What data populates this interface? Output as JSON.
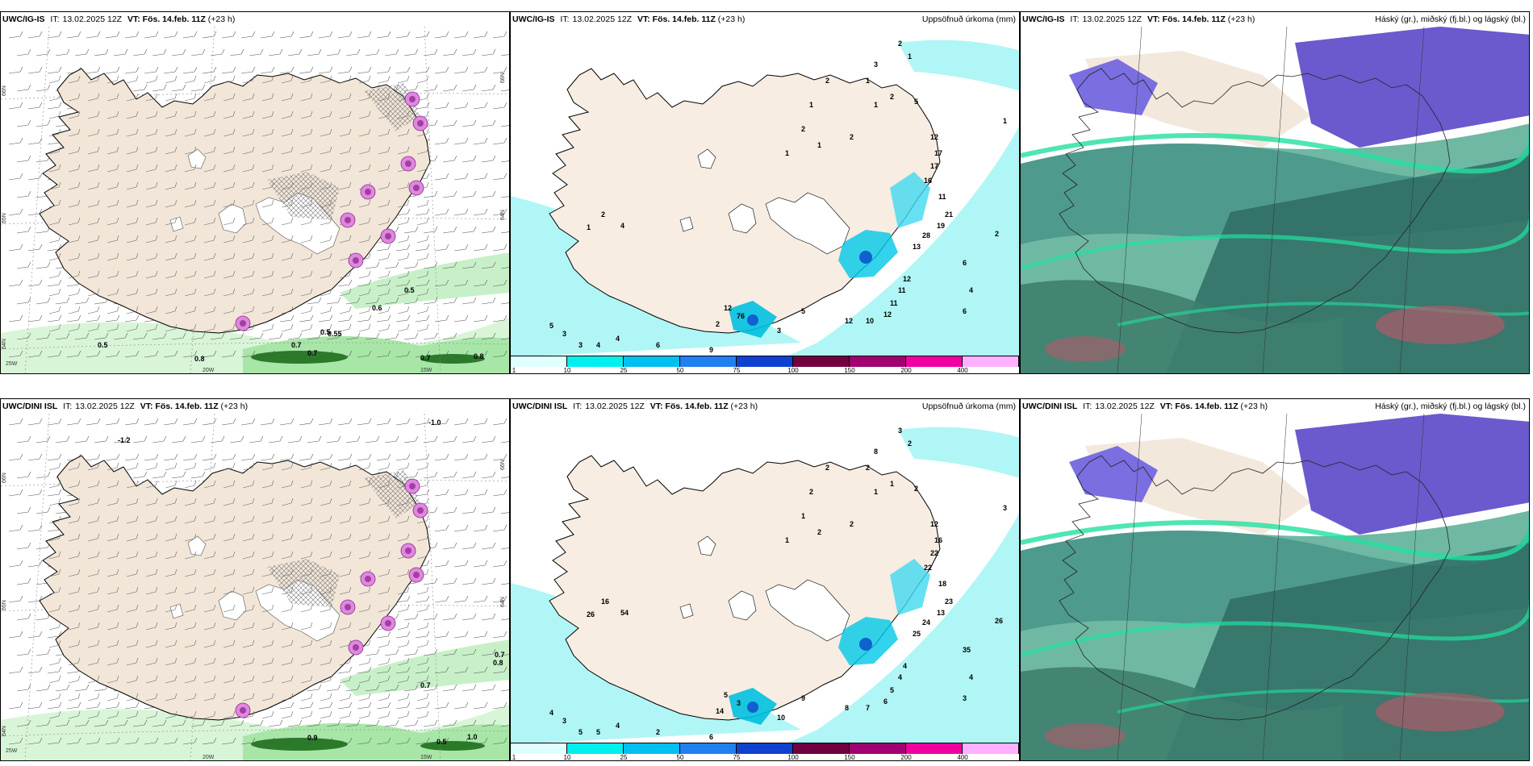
{
  "panels": [
    {
      "model": "UWC/IG-IS",
      "init_label": "IT:",
      "init_time": "13.02.2025 12Z",
      "valid_label": "VT:",
      "valid_time": "Fös. 14.feb. 11Z",
      "lead": "(+23 h)",
      "right_title": "",
      "kind": "wind",
      "values": [
        "0.5",
        "0.8",
        "0.6",
        "0.5",
        "0.5",
        "0.7",
        "0.55",
        "0.8",
        "0.7",
        "0.7"
      ],
      "axis_labels": [
        "66N",
        "65N",
        "64N",
        "25W",
        "20W",
        "15W",
        "66N",
        "64N"
      ]
    },
    {
      "model": "UWC/IG-IS",
      "init_label": "IT:",
      "init_time": "13.02.2025 12Z",
      "valid_label": "VT:",
      "valid_time": "Fös. 14.feb. 11Z",
      "lead": "(+23 h)",
      "right_title": "Uppsöfnuð úrkoma (mm)",
      "kind": "precip",
      "values": [
        "1",
        "2",
        "5",
        "1",
        "12",
        "17",
        "17",
        "16",
        "11",
        "21",
        "19",
        "28",
        "13",
        "2",
        "6",
        "4",
        "6",
        "12",
        "11",
        "11",
        "12",
        "10",
        "12",
        "5",
        "3",
        "2",
        "2",
        "1",
        "4",
        "5",
        "3",
        "3",
        "4",
        "4",
        "6",
        "9",
        "12",
        "76",
        "2",
        "3",
        "1",
        "2",
        "1",
        "2",
        "1",
        "1",
        "2",
        "1"
      ]
    },
    {
      "model": "UWC/IG-IS",
      "init_label": "IT:",
      "init_time": "13.02.2025 12Z",
      "valid_label": "VT:",
      "valid_time": "Fös. 14.feb. 11Z",
      "lead": "(+23 h)",
      "right_title": "Háský (gr.), miðský (fj.bl.) og lágský (bl.)",
      "kind": "cloud"
    },
    {
      "model": "UWC/DINI ISL",
      "init_label": "IT:",
      "init_time": "13.02.2025 12Z",
      "valid_label": "VT:",
      "valid_time": "Fös. 14.feb. 11Z",
      "lead": "(+23 h)",
      "right_title": "",
      "kind": "wind",
      "values": [
        "-1.2",
        "-1.0",
        "0.7",
        "0.8",
        "0.7",
        "0.9",
        "0.5",
        "1.0"
      ],
      "axis_labels": [
        "66N",
        "65N",
        "64N",
        "25W",
        "20W",
        "15W",
        "66N",
        "64N"
      ]
    },
    {
      "model": "UWC/DINI ISL",
      "init_label": "IT:",
      "init_time": "13.02.2025 12Z",
      "valid_label": "VT:",
      "valid_time": "Fös. 14.feb. 11Z",
      "lead": "(+23 h)",
      "right_title": "Uppsöfnuð úrkoma (mm)",
      "kind": "precip",
      "values": [
        "1",
        "1",
        "2",
        "2",
        "12",
        "16",
        "22",
        "22",
        "18",
        "23",
        "13",
        "24",
        "25",
        "26",
        "35",
        "4",
        "3",
        "4",
        "4",
        "5",
        "6",
        "7",
        "8",
        "9",
        "10",
        "14",
        "16",
        "26",
        "54",
        "4",
        "3",
        "5",
        "5",
        "4",
        "2",
        "6",
        "5",
        "3",
        "3",
        "8",
        "2",
        "2",
        "2",
        "1",
        "1",
        "2",
        "2",
        "3"
      ]
    },
    {
      "model": "UWC/DINI ISL",
      "init_label": "IT:",
      "init_time": "13.02.2025 12Z",
      "valid_label": "VT:",
      "valid_time": "Fös. 14.feb. 11Z",
      "lead": "(+23 h)",
      "right_title": "Háský (gr.), miðský (fj.bl.) og lágský (bl.)",
      "kind": "cloud"
    }
  ],
  "colorbar": {
    "labels": [
      "1",
      "10",
      "25",
      "50",
      "75",
      "100",
      "150",
      "200",
      "400"
    ],
    "colors": [
      "#e0ffff",
      "#00f0f0",
      "#00c0f0",
      "#2080f0",
      "#1040d0",
      "#700040",
      "#a00070",
      "#f000a0",
      "#ffb0ff"
    ]
  }
}
